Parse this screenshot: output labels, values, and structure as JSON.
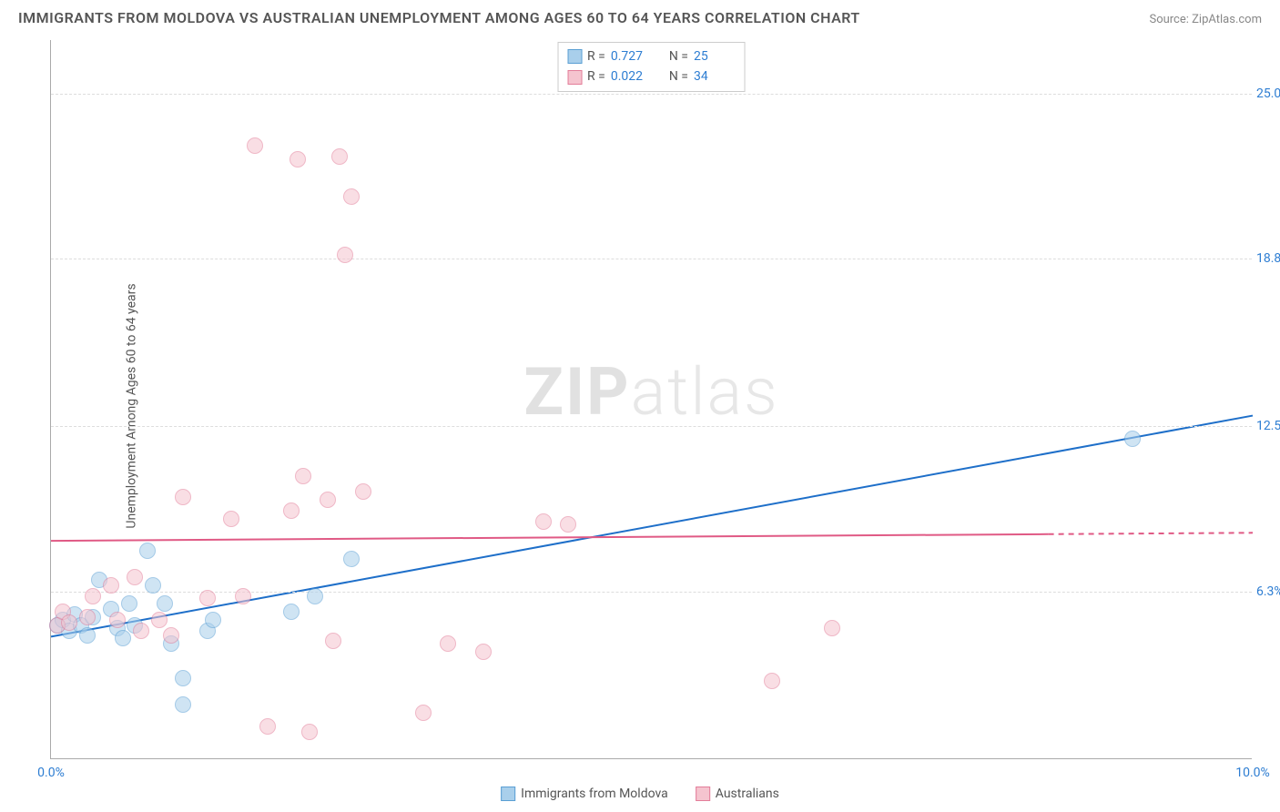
{
  "title": "IMMIGRANTS FROM MOLDOVA VS AUSTRALIAN UNEMPLOYMENT AMONG AGES 60 TO 64 YEARS CORRELATION CHART",
  "source_label": "Source: ZipAtlas.com",
  "y_axis_label": "Unemployment Among Ages 60 to 64 years",
  "watermark_a": "ZIP",
  "watermark_b": "atlas",
  "chart": {
    "type": "scatter",
    "x_range": [
      0.0,
      10.0
    ],
    "y_range": [
      0.0,
      27.0
    ],
    "x_ticks": [
      {
        "value": 0.0,
        "label": "0.0%",
        "color": "#2d7dd2"
      },
      {
        "value": 10.0,
        "label": "10.0%",
        "color": "#2d7dd2"
      }
    ],
    "y_ticks": [
      {
        "value": 6.3,
        "label": "6.3%",
        "color": "#2d7dd2"
      },
      {
        "value": 12.5,
        "label": "12.5%",
        "color": "#2d7dd2"
      },
      {
        "value": 18.8,
        "label": "18.8%",
        "color": "#2d7dd2"
      },
      {
        "value": 25.0,
        "label": "25.0%",
        "color": "#2d7dd2"
      }
    ],
    "gridline_color": "#dddddd",
    "marker_radius": 9,
    "marker_opacity": 0.55,
    "series": [
      {
        "name": "Immigrants from Moldova",
        "color_fill": "#a9cfeb",
        "color_stroke": "#5a9fd4",
        "R": "0.727",
        "N": "25",
        "trend": {
          "x1": 0.0,
          "y1": 4.6,
          "x2": 10.0,
          "y2": 12.9,
          "solid_until_x": 10.0,
          "stroke": "#1e6fc9",
          "width": 2
        },
        "points": [
          {
            "x": 0.05,
            "y": 5.0
          },
          {
            "x": 0.1,
            "y": 5.2
          },
          {
            "x": 0.15,
            "y": 4.8
          },
          {
            "x": 0.2,
            "y": 5.4
          },
          {
            "x": 0.25,
            "y": 5.0
          },
          {
            "x": 0.3,
            "y": 4.6
          },
          {
            "x": 0.35,
            "y": 5.3
          },
          {
            "x": 0.4,
            "y": 6.7
          },
          {
            "x": 0.5,
            "y": 5.6
          },
          {
            "x": 0.55,
            "y": 4.9
          },
          {
            "x": 0.6,
            "y": 4.5
          },
          {
            "x": 0.65,
            "y": 5.8
          },
          {
            "x": 0.7,
            "y": 5.0
          },
          {
            "x": 0.8,
            "y": 7.8
          },
          {
            "x": 0.85,
            "y": 6.5
          },
          {
            "x": 0.95,
            "y": 5.8
          },
          {
            "x": 1.0,
            "y": 4.3
          },
          {
            "x": 1.1,
            "y": 3.0
          },
          {
            "x": 1.3,
            "y": 4.8
          },
          {
            "x": 1.35,
            "y": 5.2
          },
          {
            "x": 1.1,
            "y": 2.0
          },
          {
            "x": 2.2,
            "y": 6.1
          },
          {
            "x": 2.5,
            "y": 7.5
          },
          {
            "x": 2.0,
            "y": 5.5
          },
          {
            "x": 9.0,
            "y": 12.0
          }
        ]
      },
      {
        "name": "Australians",
        "color_fill": "#f5c4cf",
        "color_stroke": "#e37d99",
        "R": "0.022",
        "N": "34",
        "trend": {
          "x1": 0.0,
          "y1": 8.2,
          "x2": 10.0,
          "y2": 8.5,
          "solid_until_x": 8.3,
          "stroke": "#e05a85",
          "width": 2
        },
        "points": [
          {
            "x": 0.05,
            "y": 5.0
          },
          {
            "x": 0.1,
            "y": 5.5
          },
          {
            "x": 0.15,
            "y": 5.1
          },
          {
            "x": 0.3,
            "y": 5.3
          },
          {
            "x": 0.35,
            "y": 6.1
          },
          {
            "x": 0.5,
            "y": 6.5
          },
          {
            "x": 0.55,
            "y": 5.2
          },
          {
            "x": 0.7,
            "y": 6.8
          },
          {
            "x": 0.75,
            "y": 4.8
          },
          {
            "x": 0.9,
            "y": 5.2
          },
          {
            "x": 1.0,
            "y": 4.6
          },
          {
            "x": 1.1,
            "y": 9.8
          },
          {
            "x": 1.3,
            "y": 6.0
          },
          {
            "x": 1.5,
            "y": 9.0
          },
          {
            "x": 1.6,
            "y": 6.1
          },
          {
            "x": 1.7,
            "y": 23.0
          },
          {
            "x": 1.8,
            "y": 1.2
          },
          {
            "x": 2.0,
            "y": 9.3
          },
          {
            "x": 2.05,
            "y": 22.5
          },
          {
            "x": 2.1,
            "y": 10.6
          },
          {
            "x": 2.15,
            "y": 1.0
          },
          {
            "x": 2.3,
            "y": 9.7
          },
          {
            "x": 2.35,
            "y": 4.4
          },
          {
            "x": 2.4,
            "y": 22.6
          },
          {
            "x": 2.45,
            "y": 18.9
          },
          {
            "x": 2.5,
            "y": 21.1
          },
          {
            "x": 2.6,
            "y": 10.0
          },
          {
            "x": 3.3,
            "y": 4.3
          },
          {
            "x": 3.1,
            "y": 1.7
          },
          {
            "x": 3.6,
            "y": 4.0
          },
          {
            "x": 4.1,
            "y": 8.9
          },
          {
            "x": 4.3,
            "y": 8.8
          },
          {
            "x": 6.5,
            "y": 4.9
          },
          {
            "x": 6.0,
            "y": 2.9
          }
        ]
      }
    ]
  },
  "legend_top": {
    "rows": [
      {
        "swatch_fill": "#a9cfeb",
        "swatch_stroke": "#5a9fd4",
        "r_label": "R =",
        "r_val": "0.727",
        "n_label": "N =",
        "n_val": "25"
      },
      {
        "swatch_fill": "#f5c4cf",
        "swatch_stroke": "#e37d99",
        "r_label": "R =",
        "r_val": "0.022",
        "n_label": "N =",
        "n_val": "34"
      }
    ]
  },
  "legend_bottom": {
    "items": [
      {
        "swatch_fill": "#a9cfeb",
        "swatch_stroke": "#5a9fd4",
        "label": "Immigrants from Moldova"
      },
      {
        "swatch_fill": "#f5c4cf",
        "swatch_stroke": "#e37d99",
        "label": "Australians"
      }
    ]
  }
}
